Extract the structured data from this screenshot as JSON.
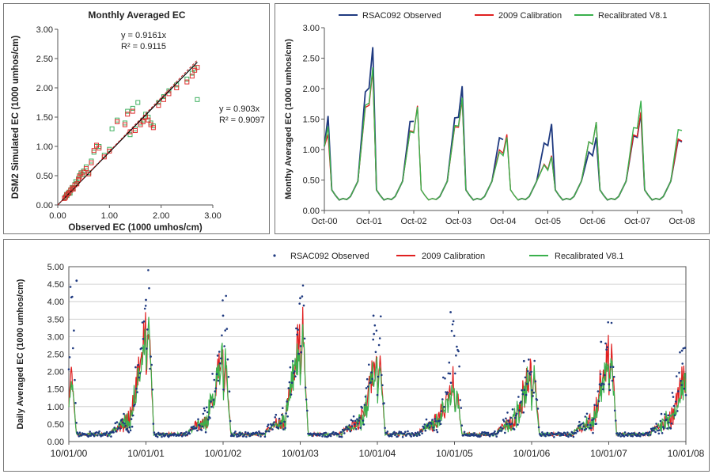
{
  "chart_data": [
    {
      "type": "scatter",
      "title": "Monthly Averaged EC",
      "xlabel": "Observed EC (1000 umhos/cm)",
      "ylabel": "DSM2 Simulated EC (1000 umhos/cm)",
      "xlim": [
        0,
        3
      ],
      "ylim": [
        0,
        3
      ],
      "xticks": [
        "0.00",
        "1.00",
        "2.00",
        "3.00"
      ],
      "yticks": [
        "0.00",
        "0.50",
        "1.00",
        "1.50",
        "2.00",
        "2.50",
        "3.00"
      ],
      "grid": false,
      "series": [
        {
          "color": "#40b060",
          "trend_slope": 0.9161,
          "eq_text": "y = 0.9161x",
          "r2_text": "R² = 0.9115",
          "points": [
            [
              0.13,
              0.12
            ],
            [
              0.15,
              0.14
            ],
            [
              0.17,
              0.18
            ],
            [
              0.2,
              0.2
            ],
            [
              0.22,
              0.22
            ],
            [
              0.25,
              0.26
            ],
            [
              0.28,
              0.3
            ],
            [
              0.3,
              0.28
            ],
            [
              0.33,
              0.35
            ],
            [
              0.37,
              0.37
            ],
            [
              0.4,
              0.45
            ],
            [
              0.42,
              0.5
            ],
            [
              0.45,
              0.55
            ],
            [
              0.5,
              0.58
            ],
            [
              0.55,
              0.65
            ],
            [
              0.6,
              0.55
            ],
            [
              0.65,
              0.75
            ],
            [
              0.7,
              0.9
            ],
            [
              0.75,
              1.0
            ],
            [
              0.8,
              1.0
            ],
            [
              0.9,
              0.85
            ],
            [
              1.0,
              0.95
            ],
            [
              1.15,
              1.45
            ],
            [
              1.3,
              1.4
            ],
            [
              1.35,
              1.6
            ],
            [
              1.4,
              1.2
            ],
            [
              1.45,
              1.65
            ],
            [
              1.5,
              1.3
            ],
            [
              1.6,
              1.4
            ],
            [
              1.65,
              1.45
            ],
            [
              1.7,
              1.55
            ],
            [
              1.75,
              1.5
            ],
            [
              1.8,
              1.4
            ],
            [
              1.85,
              1.35
            ],
            [
              1.95,
              1.75
            ],
            [
              2.05,
              1.85
            ],
            [
              2.15,
              1.95
            ],
            [
              2.3,
              2.05
            ],
            [
              2.5,
              2.15
            ],
            [
              2.6,
              2.25
            ],
            [
              2.65,
              2.33
            ],
            [
              2.7,
              1.8
            ],
            [
              0.18,
              0.16
            ],
            [
              0.24,
              0.2
            ],
            [
              0.35,
              0.4
            ],
            [
              0.48,
              0.52
            ],
            [
              1.05,
              1.3
            ],
            [
              1.55,
              1.75
            ]
          ]
        },
        {
          "color": "#e03030",
          "trend_slope": 0.903,
          "eq_text": "y = 0.903x",
          "r2_text": "R² = 0.9097",
          "points": [
            [
              0.13,
              0.11
            ],
            [
              0.15,
              0.13
            ],
            [
              0.17,
              0.17
            ],
            [
              0.2,
              0.19
            ],
            [
              0.22,
              0.21
            ],
            [
              0.25,
              0.25
            ],
            [
              0.28,
              0.29
            ],
            [
              0.3,
              0.27
            ],
            [
              0.33,
              0.34
            ],
            [
              0.37,
              0.36
            ],
            [
              0.4,
              0.43
            ],
            [
              0.42,
              0.48
            ],
            [
              0.45,
              0.53
            ],
            [
              0.5,
              0.56
            ],
            [
              0.55,
              0.62
            ],
            [
              0.6,
              0.53
            ],
            [
              0.65,
              0.72
            ],
            [
              0.7,
              0.93
            ],
            [
              0.75,
              1.02
            ],
            [
              0.8,
              0.97
            ],
            [
              0.9,
              0.82
            ],
            [
              1.0,
              0.92
            ],
            [
              1.15,
              1.42
            ],
            [
              1.3,
              1.37
            ],
            [
              1.35,
              1.55
            ],
            [
              1.4,
              1.25
            ],
            [
              1.45,
              1.6
            ],
            [
              1.5,
              1.27
            ],
            [
              1.6,
              1.37
            ],
            [
              1.65,
              1.42
            ],
            [
              1.7,
              1.5
            ],
            [
              1.75,
              1.45
            ],
            [
              1.8,
              1.37
            ],
            [
              1.85,
              1.32
            ],
            [
              1.95,
              1.7
            ],
            [
              2.05,
              1.8
            ],
            [
              2.15,
              1.9
            ],
            [
              2.3,
              2.0
            ],
            [
              2.5,
              2.1
            ],
            [
              2.6,
              2.2
            ],
            [
              2.65,
              2.3
            ],
            [
              2.7,
              2.35
            ]
          ]
        }
      ]
    },
    {
      "type": "line",
      "ylabel": "Monthy Averaged EC (1000 umhos/cm)",
      "ylim": [
        0,
        3
      ],
      "yticks": [
        "0.00",
        "0.50",
        "1.00",
        "1.50",
        "2.00",
        "2.50",
        "3.00"
      ],
      "xticks": [
        "Oct-00",
        "Oct-01",
        "Oct-02",
        "Oct-03",
        "Oct-04",
        "Oct-05",
        "Oct-06",
        "Oct-07",
        "Oct-08"
      ],
      "legend": "top",
      "series": [
        {
          "name": "RSAC092 Observed",
          "color": "#1f3a80",
          "width": 1.8,
          "peaks": [
            [
              0.05,
              1.55
            ],
            [
              1.0,
              2.68
            ],
            [
              1.96,
              1.95
            ],
            [
              2.96,
              2.04
            ],
            [
              3.96,
              1.55
            ],
            [
              4.97,
              1.42
            ],
            [
              5.93,
              1.2
            ],
            [
              6.95,
              1.6
            ],
            [
              8.0,
              1.5
            ]
          ],
          "gaps": [
            [
              2.05,
              2.45
            ],
            [
              4.05,
              4.3
            ]
          ]
        },
        {
          "name": "2009 Calibration",
          "color": "#e02020",
          "width": 1.4,
          "peaks": [
            [
              0.05,
              1.25
            ],
            [
              1.0,
              2.3
            ],
            [
              1.95,
              1.72
            ],
            [
              2.95,
              1.82
            ],
            [
              3.98,
              1.25
            ],
            [
              4.95,
              0.9
            ],
            [
              5.95,
              1.45
            ],
            [
              6.98,
              1.62
            ],
            [
              8.0,
              1.52
            ]
          ],
          "gaps": []
        },
        {
          "name": "Recalibrated V8.1",
          "color": "#3ab04c",
          "width": 1.4,
          "peaks": [
            [
              0.05,
              1.38
            ],
            [
              1.0,
              2.35
            ],
            [
              1.95,
              1.7
            ],
            [
              2.95,
              1.85
            ],
            [
              3.98,
              1.2
            ],
            [
              4.95,
              0.88
            ],
            [
              5.95,
              1.45
            ],
            [
              7.0,
              1.8
            ],
            [
              8.0,
              1.75
            ]
          ],
          "gaps": []
        }
      ]
    },
    {
      "type": "line",
      "ylabel": "Daily Averaged EC (1000 umhos/cm)",
      "ylim": [
        0,
        5
      ],
      "yticks": [
        "0.00",
        "0.50",
        "1.00",
        "1.50",
        "2.00",
        "2.50",
        "3.00",
        "3.50",
        "4.00",
        "4.50",
        "5.00"
      ],
      "xticks": [
        "10/01/00",
        "10/01/01",
        "10/01/02",
        "10/01/03",
        "10/01/04",
        "10/01/05",
        "10/01/06",
        "10/01/07",
        "10/01/08"
      ],
      "grid": true,
      "legend": "top",
      "series": [
        {
          "name": "RSAC092 Observed",
          "color": "#1f3a80",
          "kind": "markers",
          "peaks": [
            [
              0.1,
              4.6
            ],
            [
              1.0,
              4.05
            ],
            [
              2.0,
              3.6
            ],
            [
              3.0,
              4.1
            ],
            [
              3.95,
              3.6
            ],
            [
              4.95,
              3.7
            ],
            [
              5.9,
              2.3
            ],
            [
              6.9,
              2.85
            ],
            [
              7.95,
              2.6
            ]
          ]
        },
        {
          "name": "2009 Calibration",
          "color": "#e02020",
          "kind": "line",
          "peaks": [
            [
              0.1,
              2.2
            ],
            [
              1.0,
              3.8
            ],
            [
              2.0,
              2.5
            ],
            [
              3.0,
              3.5
            ],
            [
              3.95,
              2.6
            ],
            [
              4.95,
              1.5
            ],
            [
              5.9,
              2.1
            ],
            [
              6.9,
              2.75
            ],
            [
              7.95,
              1.9
            ]
          ]
        },
        {
          "name": "Recalibrated V8.1",
          "color": "#3ab04c",
          "kind": "line",
          "peaks": [
            [
              0.1,
              2.0
            ],
            [
              1.0,
              3.6
            ],
            [
              2.0,
              2.4
            ],
            [
              3.0,
              3.3
            ],
            [
              3.95,
              2.4
            ],
            [
              4.95,
              1.4
            ],
            [
              5.9,
              2.0
            ],
            [
              6.9,
              2.5
            ],
            [
              7.95,
              1.8
            ]
          ]
        }
      ]
    }
  ]
}
